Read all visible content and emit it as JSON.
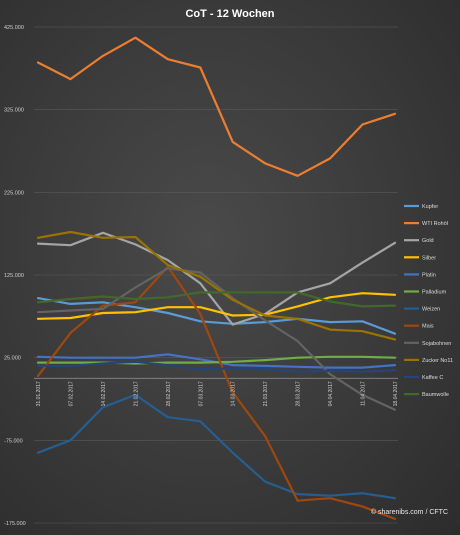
{
  "chart_data": {
    "type": "line",
    "title": "CoT - 12 Wochen",
    "source": "© sharenibs.com / CFTC",
    "ylim": [
      -175000,
      425000
    ],
    "yticks": [
      425000,
      325000,
      225000,
      125000,
      25000,
      -75000,
      -175000
    ],
    "ytick_labels": [
      "425.000",
      "325.000",
      "225.000",
      "125.000",
      "25.000",
      "-75.000",
      "-175.000"
    ],
    "grid": true,
    "legend_position": "right",
    "categories": [
      "31.01.2017",
      "07.02.2017",
      "14.02.2017",
      "21.02.2017",
      "28.02.2017",
      "07.03.2017",
      "14.03.2017",
      "21.03.2017",
      "28.03.2017",
      "04.04.2017",
      "11.04.2017",
      "18.04.2017"
    ],
    "series": [
      {
        "name": "Kupfer",
        "color": "#5b9bd5",
        "values": [
          97000,
          90000,
          92000,
          86000,
          79000,
          69000,
          66000,
          68000,
          72000,
          68000,
          69000,
          54000
        ]
      },
      {
        "name": "WTI Rohöl",
        "color": "#ed7d31",
        "values": [
          382000,
          362000,
          390000,
          412000,
          386000,
          376000,
          286000,
          260000,
          245000,
          266000,
          307000,
          320000
        ]
      },
      {
        "name": "Gold",
        "color": "#a5a5a5",
        "values": [
          163000,
          161000,
          176000,
          162000,
          143000,
          115000,
          65000,
          78000,
          104000,
          115000,
          140000,
          164000
        ]
      },
      {
        "name": "Silber",
        "color": "#ffc000",
        "values": [
          72000,
          73000,
          79000,
          80000,
          86000,
          86000,
          76000,
          77000,
          87000,
          98000,
          103000,
          101000
        ]
      },
      {
        "name": "Platin",
        "color": "#4472c4",
        "values": [
          26000,
          25000,
          25000,
          25000,
          29000,
          23000,
          16000,
          15000,
          14000,
          13000,
          13000,
          16000
        ]
      },
      {
        "name": "Palladium",
        "color": "#70ad47",
        "values": [
          19000,
          19000,
          19000,
          18000,
          19000,
          19000,
          20000,
          22000,
          25000,
          26000,
          26000,
          25000
        ]
      },
      {
        "name": "Weizen",
        "color": "#255e91",
        "values": [
          -90000,
          -75000,
          -35000,
          -20000,
          -47000,
          -52000,
          -90000,
          -125000,
          -140000,
          -142000,
          -139000,
          -145000
        ]
      },
      {
        "name": "Mais",
        "color": "#9e480e",
        "values": [
          3000,
          55000,
          88000,
          92000,
          135000,
          78000,
          -17000,
          -70000,
          -148000,
          -145000,
          -155000,
          -170000
        ]
      },
      {
        "name": "Sojabohnen",
        "color": "#636363",
        "values": [
          80000,
          82000,
          84000,
          110000,
          133000,
          128000,
          97000,
          70000,
          45000,
          5000,
          -20000,
          -38000
        ]
      },
      {
        "name": "Zucker No11",
        "color": "#997300",
        "values": [
          170000,
          177000,
          170000,
          171000,
          137000,
          123000,
          95000,
          76000,
          72000,
          59000,
          57000,
          47000
        ]
      },
      {
        "name": "Kaffee C",
        "color": "#264478",
        "values": [
          15000,
          15000,
          18000,
          20000,
          16000,
          11000,
          12000,
          11000,
          8000,
          9000,
          8000,
          10000
        ]
      },
      {
        "name": "Baumwolle",
        "color": "#43682b",
        "values": [
          92000,
          96000,
          99000,
          96000,
          98000,
          104000,
          104000,
          104000,
          104000,
          93000,
          87000,
          88000
        ]
      }
    ]
  }
}
